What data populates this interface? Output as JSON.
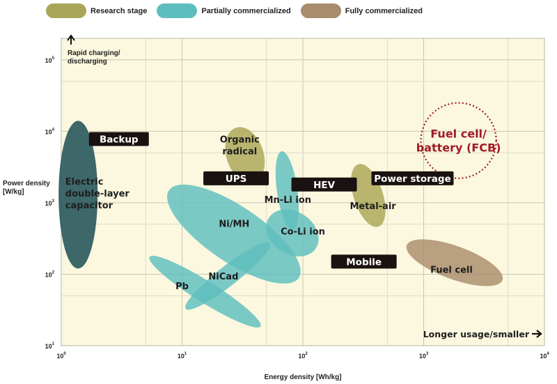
{
  "chart_data": {
    "type": "scatter",
    "title": "",
    "xlabel": "Energy density [Wh/kg]",
    "ylabel_lines": [
      "Power density",
      "[W/kg]"
    ],
    "x_scale": "log",
    "y_scale": "log",
    "xlim": [
      1,
      10000
    ],
    "ylim": [
      10,
      200000
    ],
    "grid": true,
    "legend_position": "top",
    "x_ticks": [
      {
        "base": "10",
        "exp": "0"
      },
      {
        "base": "10",
        "exp": "1"
      },
      {
        "base": "10",
        "exp": "2"
      },
      {
        "base": "10",
        "exp": "3"
      },
      {
        "base": "10",
        "exp": "4"
      }
    ],
    "y_ticks": [
      {
        "base": "10",
        "exp": "1"
      },
      {
        "base": "10",
        "exp": "2"
      },
      {
        "base": "10",
        "exp": "3"
      },
      {
        "base": "10",
        "exp": "4"
      },
      {
        "base": "10",
        "exp": "5"
      }
    ],
    "legend": [
      {
        "label": "Research stage",
        "color": "#a9a657"
      },
      {
        "label": "Partially commercialized",
        "color": "#5ebebe"
      },
      {
        "label": "Fully commercialized",
        "color": "#a88c6d"
      }
    ],
    "regions": [
      {
        "name": "Pb",
        "stage": "Partially commercialized",
        "x_range": [
          6,
          40
        ],
        "y_range": [
          25,
          130
        ],
        "label_x": 10,
        "label_y": 62
      },
      {
        "name": "NiCad",
        "stage": "Partially commercialized",
        "x_range": [
          11,
          52
        ],
        "y_range": [
          20,
          450
        ],
        "label_x": 22,
        "label_y": 84
      },
      {
        "name": "Ni/MH",
        "stage": "Partially commercialized",
        "x_range": [
          8,
          90
        ],
        "y_range": [
          95,
          1400
        ],
        "label_x": 27,
        "label_y": 460
      },
      {
        "name": "Electric double-layer capacitor",
        "stage": "Fully commercialized",
        "x_range": [
          0.95,
          2
        ],
        "y_range": [
          120,
          14000
        ],
        "label_x": 1.08,
        "label_y": 1800
      },
      {
        "name": "Organic radical",
        "stage": "Research stage",
        "x_range": [
          20,
          55
        ],
        "y_range": [
          1600,
          13500
        ],
        "label_x": 30,
        "label_y": 7000
      },
      {
        "name": "Mn-Li ion",
        "stage": "Partially commercialized",
        "x_range": [
          55,
          100
        ],
        "y_range": [
          400,
          5500
        ],
        "label_x": 75,
        "label_y": 1000
      },
      {
        "name": "Co-Li ion",
        "stage": "Partially commercialized",
        "x_range": [
          42,
          160
        ],
        "y_range": [
          130,
          1100
        ],
        "label_x": 100,
        "label_y": 360
      },
      {
        "name": "Metal-air",
        "stage": "Research stage",
        "x_range": [
          220,
          550
        ],
        "y_range": [
          400,
          4000
        ],
        "label_x": 380,
        "label_y": 820
      },
      {
        "name": "Fuel cell",
        "stage": "Fully commercialized",
        "x_range": [
          650,
          5000
        ],
        "y_range": [
          50,
          420
        ],
        "label_x": 1700,
        "label_y": 105
      },
      {
        "name": "Fuel cell/ battery (FCB)",
        "stage": "target",
        "x_range": [
          900,
          4200
        ],
        "y_range": [
          2200,
          25000
        ],
        "label_lines": [
          "Fuel cell/",
          "battery (FCB)"
        ]
      }
    ],
    "applications": [
      {
        "label": "Backup",
        "x": 3,
        "y": 7800
      },
      {
        "label": "UPS",
        "x": 28,
        "y": 2200
      },
      {
        "label": "HEV",
        "x": 150,
        "y": 1800
      },
      {
        "label": "Power storage",
        "x": 1000,
        "y": 2200
      },
      {
        "label": "Mobile",
        "x": 320,
        "y": 150
      }
    ],
    "annotations": [
      {
        "lines": [
          "Rapid charging/",
          "discharging"
        ],
        "direction": "up"
      },
      {
        "text": "Longer usage/smaller",
        "direction": "right"
      }
    ]
  }
}
